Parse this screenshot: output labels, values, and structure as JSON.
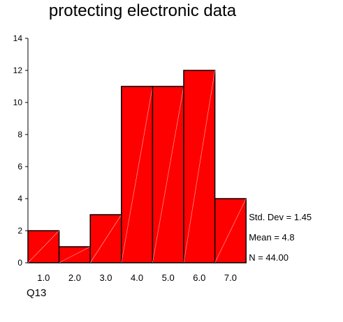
{
  "chart_data": {
    "type": "bar",
    "title": "protecting electronic data",
    "xlabel": "Q13",
    "ylabel": "",
    "categories": [
      "1.0",
      "2.0",
      "3.0",
      "4.0",
      "5.0",
      "6.0",
      "7.0"
    ],
    "values": [
      2,
      1,
      3,
      11,
      11,
      12,
      4
    ],
    "ylim": [
      0,
      14
    ],
    "yticks": [
      0,
      2,
      4,
      6,
      8,
      10,
      12,
      14
    ],
    "grid": false,
    "bar_color": "#ff0000",
    "stats": [
      "Std. Dev = 1.45",
      "Mean = 4.8",
      "N = 44.00"
    ]
  }
}
